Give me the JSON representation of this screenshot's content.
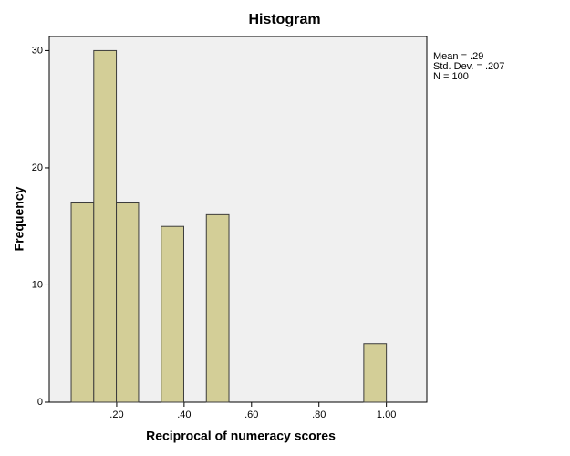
{
  "chart_data": {
    "type": "histogram",
    "title": "Histogram",
    "x_label": "Reciprocal of numeracy scores",
    "y_label": "Frequency",
    "bins": [
      0.065,
      0.132,
      0.199,
      0.265,
      0.332,
      0.399,
      0.466,
      0.533,
      0.599,
      0.666,
      0.733,
      0.8,
      0.866,
      0.933,
      1.0
    ],
    "counts": [
      17,
      30,
      17,
      0,
      15,
      0,
      16,
      0,
      0,
      0,
      0,
      0,
      0,
      5
    ],
    "color": "#d3ce97",
    "xlim": [
      0,
      1.12
    ],
    "ylim": [
      0,
      31.2
    ],
    "xticks": [
      {
        "value": 0.2,
        "label": ".20"
      },
      {
        "value": 0.4,
        "label": ".40"
      },
      {
        "value": 0.6,
        "label": ".60"
      },
      {
        "value": 0.8,
        "label": ".80"
      },
      {
        "value": 1.0,
        "label": "1.00"
      }
    ],
    "yticks": [
      0,
      10,
      20,
      30
    ],
    "stats": [
      "Mean = .29",
      "Std. Dev. = .207",
      "N = 100"
    ]
  }
}
